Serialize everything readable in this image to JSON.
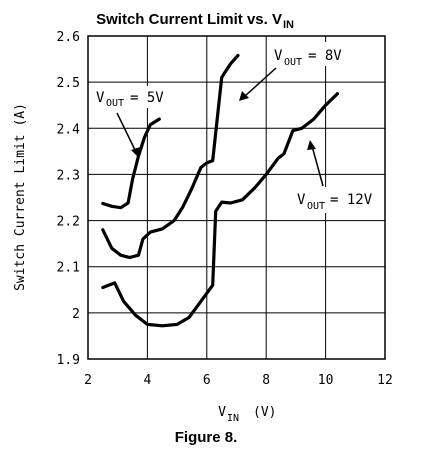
{
  "chart_data": {
    "type": "line",
    "title": "Switch Current Limit vs. V",
    "title_subscript": "IN",
    "xlabel": "V",
    "xlabel_subscript": "IN",
    "xlabel_unit": "(V)",
    "ylabel": "Switch Current Limit (A)",
    "xlim": [
      2,
      12
    ],
    "ylim": [
      1.9,
      2.6
    ],
    "x_ticks": [
      "2",
      "4",
      "6",
      "8",
      "10",
      "12"
    ],
    "y_ticks": [
      "1.9",
      "2",
      "2.1",
      "2.2",
      "2.3",
      "2.4",
      "2.5",
      "2.6"
    ],
    "grid": true,
    "series": [
      {
        "name": "V_OUT = 5V",
        "x": [
          2.5,
          2.8,
          3.1,
          3.35,
          3.5,
          3.7,
          3.9,
          4.1,
          4.4
        ],
        "y": [
          2.237,
          2.231,
          2.228,
          2.238,
          2.29,
          2.34,
          2.38,
          2.408,
          2.42
        ]
      },
      {
        "name": "V_OUT = 8V",
        "x": [
          2.5,
          2.8,
          3.1,
          3.4,
          3.7,
          3.85,
          4.1,
          4.5,
          4.9,
          5.2,
          5.5,
          5.8,
          6.0,
          6.2,
          6.35,
          6.5,
          6.6,
          6.8,
          7.05
        ],
        "y": [
          2.18,
          2.14,
          2.125,
          2.12,
          2.125,
          2.16,
          2.175,
          2.182,
          2.2,
          2.23,
          2.27,
          2.315,
          2.325,
          2.33,
          2.42,
          2.51,
          2.52,
          2.54,
          2.558
        ]
      },
      {
        "name": "V_OUT = 12V",
        "x": [
          2.5,
          2.9,
          3.2,
          3.6,
          4.0,
          4.5,
          5.0,
          5.4,
          5.8,
          6.2,
          6.3,
          6.5,
          6.8,
          7.2,
          7.6,
          8.0,
          8.4,
          8.6,
          8.9,
          9.2,
          9.6,
          10.0,
          10.4
        ],
        "y": [
          2.055,
          2.065,
          2.025,
          1.995,
          1.975,
          1.972,
          1.975,
          1.99,
          2.025,
          2.06,
          2.22,
          2.24,
          2.238,
          2.245,
          2.27,
          2.3,
          2.335,
          2.345,
          2.395,
          2.4,
          2.42,
          2.45,
          2.475
        ]
      }
    ],
    "annotations": [
      {
        "label": "V",
        "sub": "OUT",
        "value": "= 5V",
        "series": "V_OUT = 5V"
      },
      {
        "label": "V",
        "sub": "OUT",
        "value": "= 8V",
        "series": "V_OUT = 8V"
      },
      {
        "label": "V",
        "sub": "OUT",
        "value": "= 12V",
        "series": "V_OUT = 12V"
      }
    ]
  },
  "caption": "Figure 8."
}
